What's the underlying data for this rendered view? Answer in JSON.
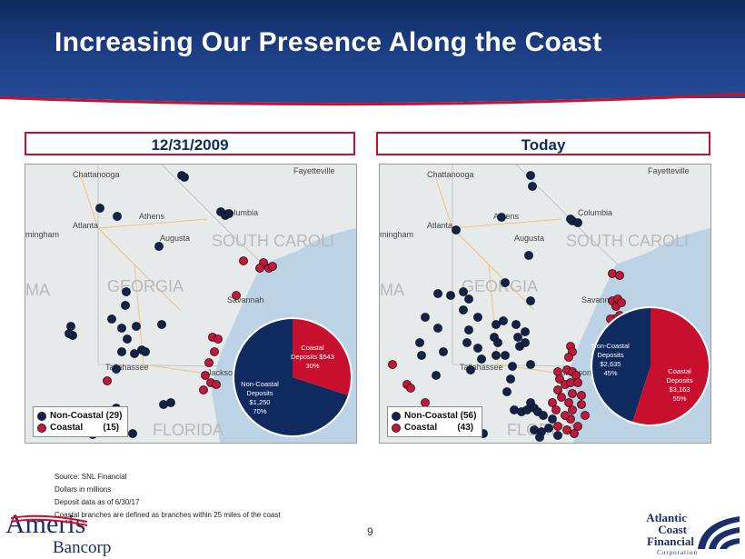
{
  "title": "Increasing Our Presence Along the Coast",
  "page_number": "9",
  "colors": {
    "navy": "#0f2a5e",
    "crimson": "#c8102e",
    "non_coastal_dot": "#10224e",
    "coastal_dot": "#c8163a"
  },
  "panels": [
    {
      "label": "12/31/2009",
      "legend": {
        "non_coastal": "Non-Coastal (29)",
        "coastal": "Coastal        (15)"
      },
      "map_labels": [
        "Chattanooga",
        "Fayetteville",
        "Atlanta",
        "Athens",
        "Columbia",
        "mingham",
        "Augusta",
        "SOUTH CAROLI",
        "MA",
        "GEORGIA",
        "Savannah",
        "Tallahassee",
        "Jacksonville",
        "FLORIDA"
      ],
      "pie": {
        "coastal_label": "Coastal",
        "coastal_amount": "Deposits $543",
        "coastal_pct": "30%",
        "non_coastal_label": "Non-Coastal",
        "non_coastal_label2": "Deposits",
        "non_coastal_amount": "$1,250",
        "non_coastal_pct": "70%",
        "coastal_share": 0.3
      }
    },
    {
      "label": "Today",
      "legend": {
        "non_coastal": "Non-Coastal (56)",
        "coastal": "Coastal        (43)"
      },
      "map_labels": [
        "Chattanooga",
        "Fayetteville",
        "Atlanta",
        "Athens",
        "Columbia",
        "mingham",
        "Augusta",
        "SOUTH CAROLI",
        "MA",
        "GEORGIA",
        "Savannah",
        "Tallahassee",
        "Jacksonville",
        "FLORIDA"
      ],
      "pie": {
        "coastal_label": "Coastal",
        "coastal_amount": "Deposits",
        "coastal_amount2": "$3,163",
        "coastal_pct": "55%",
        "non_coastal_label": "Non-Coastal",
        "non_coastal_label2": "Deposits",
        "non_coastal_amount": "$2,635",
        "non_coastal_pct": "45%",
        "coastal_share": 0.55
      }
    }
  ],
  "footnotes": [
    "Source: SNL Financial",
    "Dollars in millions",
    "Deposit data as of 6/30/17",
    "Coastal branches are defined as branches within 25 miles of the coast"
  ],
  "logos": {
    "ameris_name": "Ameris",
    "ameris_sub": "Bancorp",
    "acf_line1": "Atlantic",
    "acf_line2": "Coast",
    "acf_line3": "Financial",
    "acf_line4": "Corporation"
  }
}
